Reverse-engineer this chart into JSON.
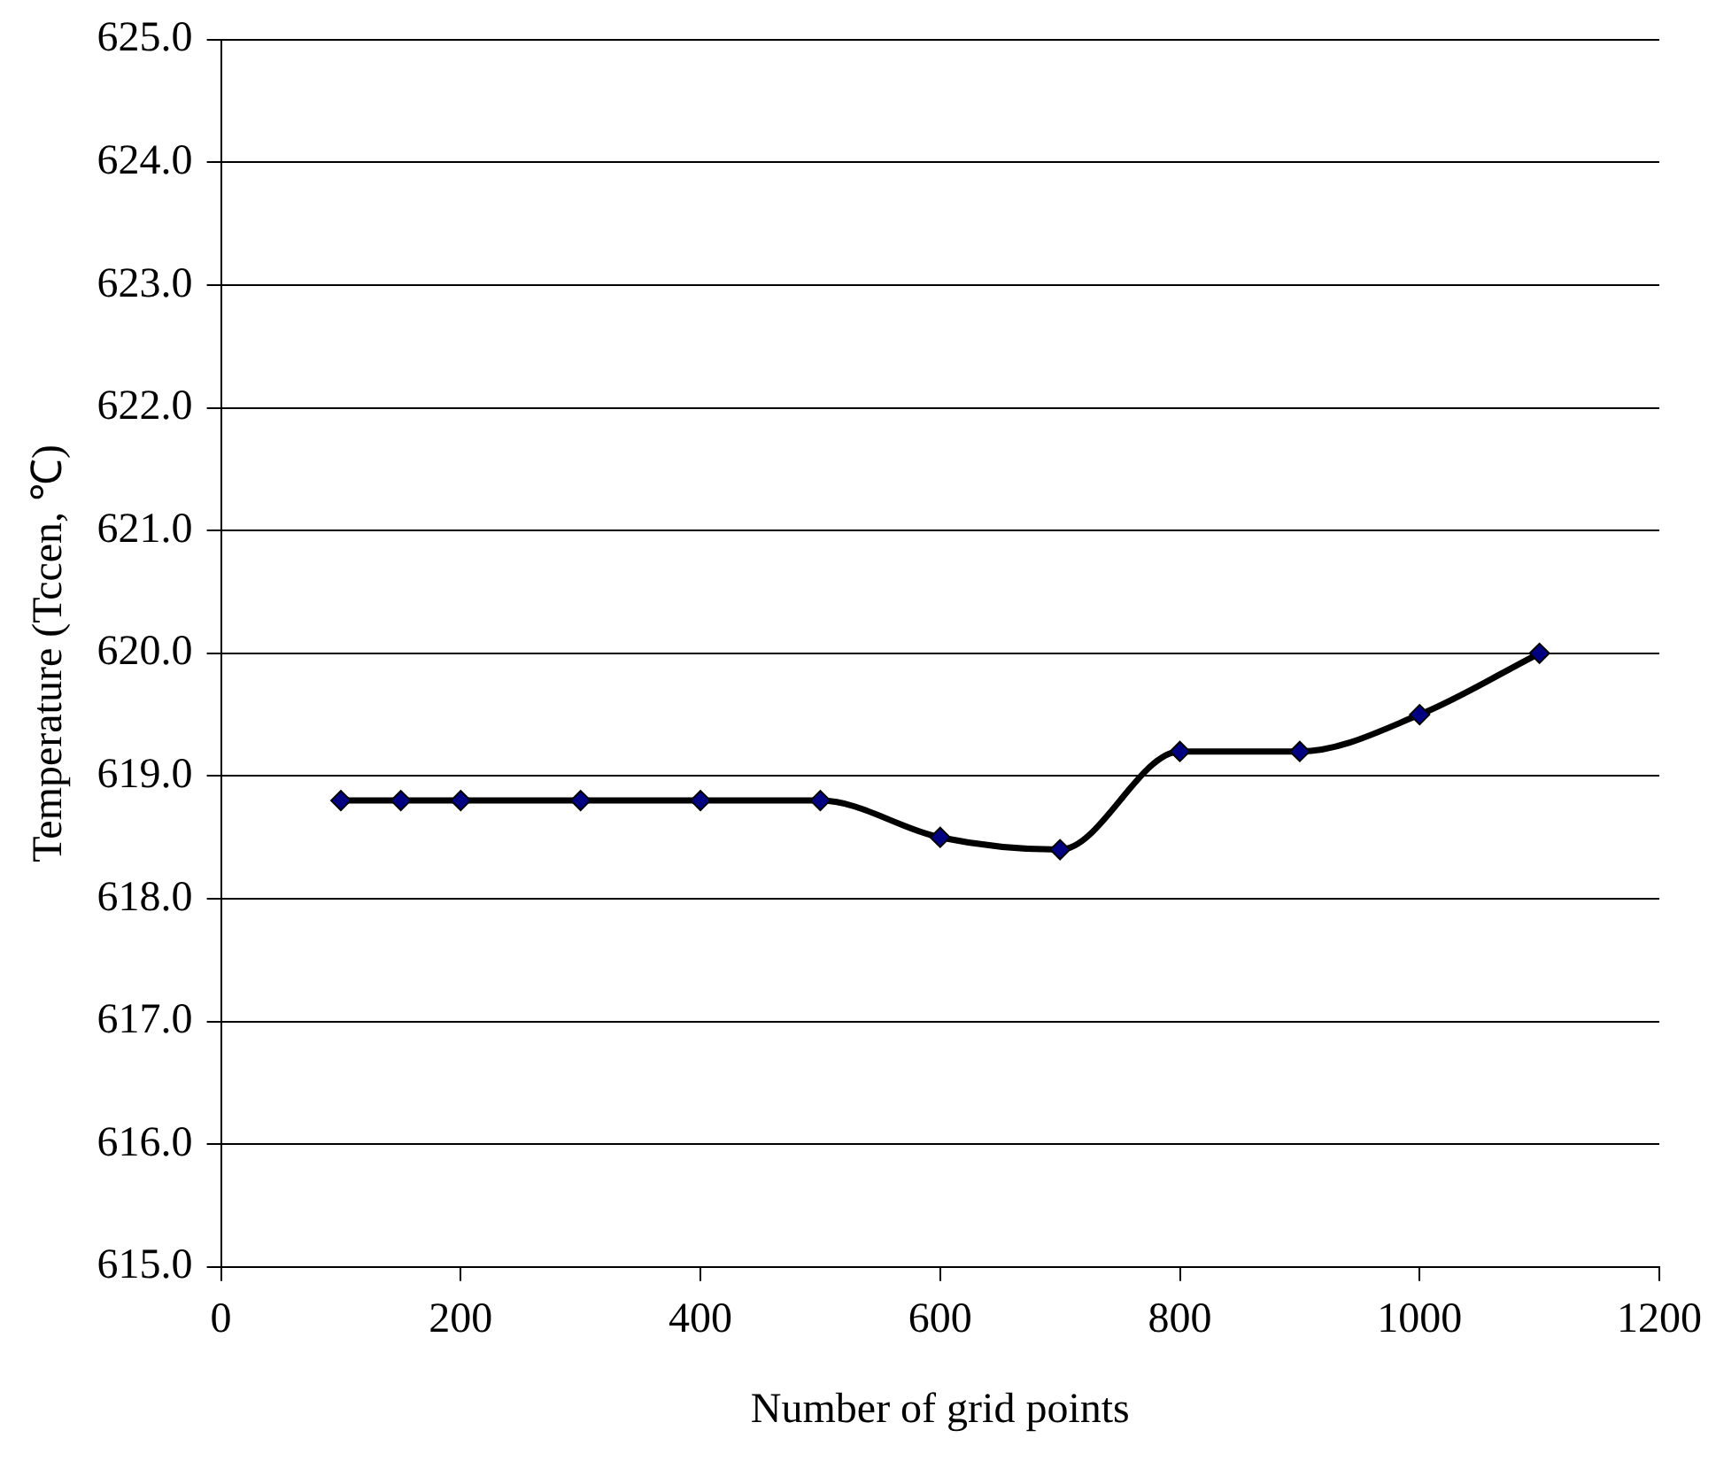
{
  "chart_data": {
    "type": "line",
    "xlabel": "Number of grid points",
    "ylabel": "Temperature (Tccen, ℃)",
    "x": [
      100,
      150,
      200,
      300,
      400,
      500,
      600,
      700,
      800,
      900,
      1000,
      1100
    ],
    "series": [
      {
        "color": "#000000",
        "values": [
          618.8,
          618.8,
          618.8,
          618.8,
          618.8,
          618.8,
          618.5,
          618.4,
          619.2,
          619.2,
          619.5,
          620.0
        ]
      }
    ],
    "xlim": [
      0,
      1200
    ],
    "xticks": [
      0,
      200,
      400,
      600,
      800,
      1000,
      1200
    ],
    "ylim": [
      615,
      625
    ],
    "yticks": [
      {
        "value": 615,
        "label": "615.0"
      },
      {
        "value": 616,
        "label": "616.0"
      },
      {
        "value": 617,
        "label": "617.0"
      },
      {
        "value": 618,
        "label": "618.0"
      },
      {
        "value": 619,
        "label": "619.0"
      },
      {
        "value": 620,
        "label": "620.0"
      },
      {
        "value": 621,
        "label": "621.0"
      },
      {
        "value": 622,
        "label": "622.0"
      },
      {
        "value": 623,
        "label": "623.0"
      },
      {
        "value": 624,
        "label": "624.0"
      },
      {
        "value": 625,
        "label": "625.0"
      }
    ],
    "grid": "y",
    "marker": "diamond",
    "line_style": "solid",
    "legend": false
  }
}
